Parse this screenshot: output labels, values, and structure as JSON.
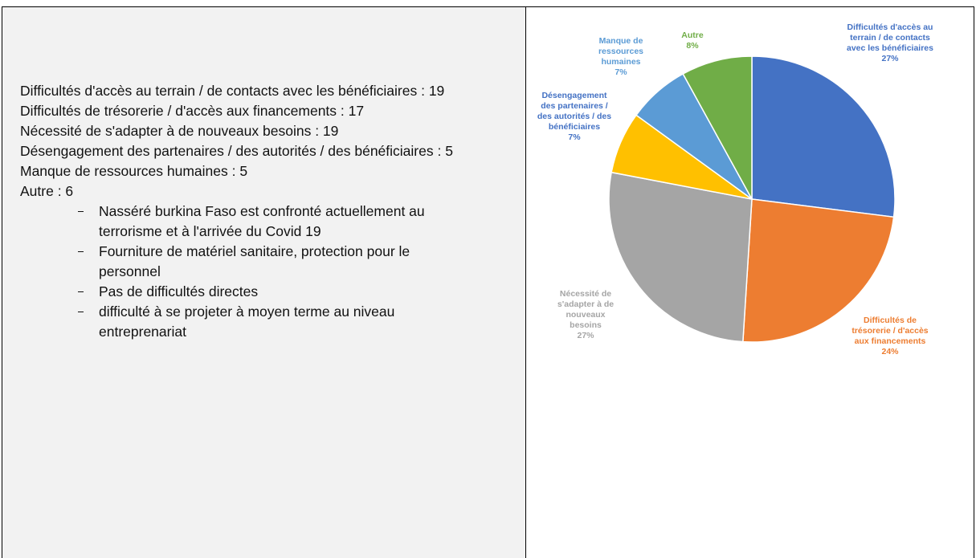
{
  "document": {
    "lines": [
      "Difficultés d'accès au terrain / de contacts avec les bénéficiaires : 19",
      "Difficultés de trésorerie / d'accès aux financements : 17",
      "Nécessité de s'adapter à de nouveaux besoins : 19",
      "Désengagement des partenaires / des autorités / des bénéficiaires : 5",
      "Manque de ressources humaines : 5",
      "Autre : 6"
    ],
    "bullets": [
      "Nasséré burkina Faso est confronté actuellement au terrorisme et à l'arrivée du Covid 19",
      "Fourniture de matériel sanitaire, protection pour le personnel",
      "Pas de difficultés directes",
      "difficulté à se projeter à moyen terme au niveau entreprenariat"
    ]
  },
  "chart_data": {
    "type": "pie",
    "categories": [
      "Difficultés d'accès au terrain / de contacts avec les bénéficiaires",
      "Difficultés de trésorerie / d'accès aux financements",
      "Nécessité de s'adapter à de nouveaux besoins",
      "Désengagement des partenaires / des autorités / des bénéficiaires",
      "Manque de ressources humaines",
      "Autre"
    ],
    "values": [
      27,
      24,
      27,
      7,
      7,
      8
    ],
    "value_labels": [
      "27%",
      "24%",
      "27%",
      "7%",
      "7%",
      "8%"
    ],
    "colors": [
      "#4472c4",
      "#ed7d31",
      "#a5a5a5",
      "#ffc000",
      "#5b9bd5",
      "#70ad47"
    ],
    "label_colors": [
      "#4472c4",
      "#ed7d31",
      "#a5a5a5",
      "#4472c4",
      "#5b9bd5",
      "#70ad47"
    ]
  }
}
